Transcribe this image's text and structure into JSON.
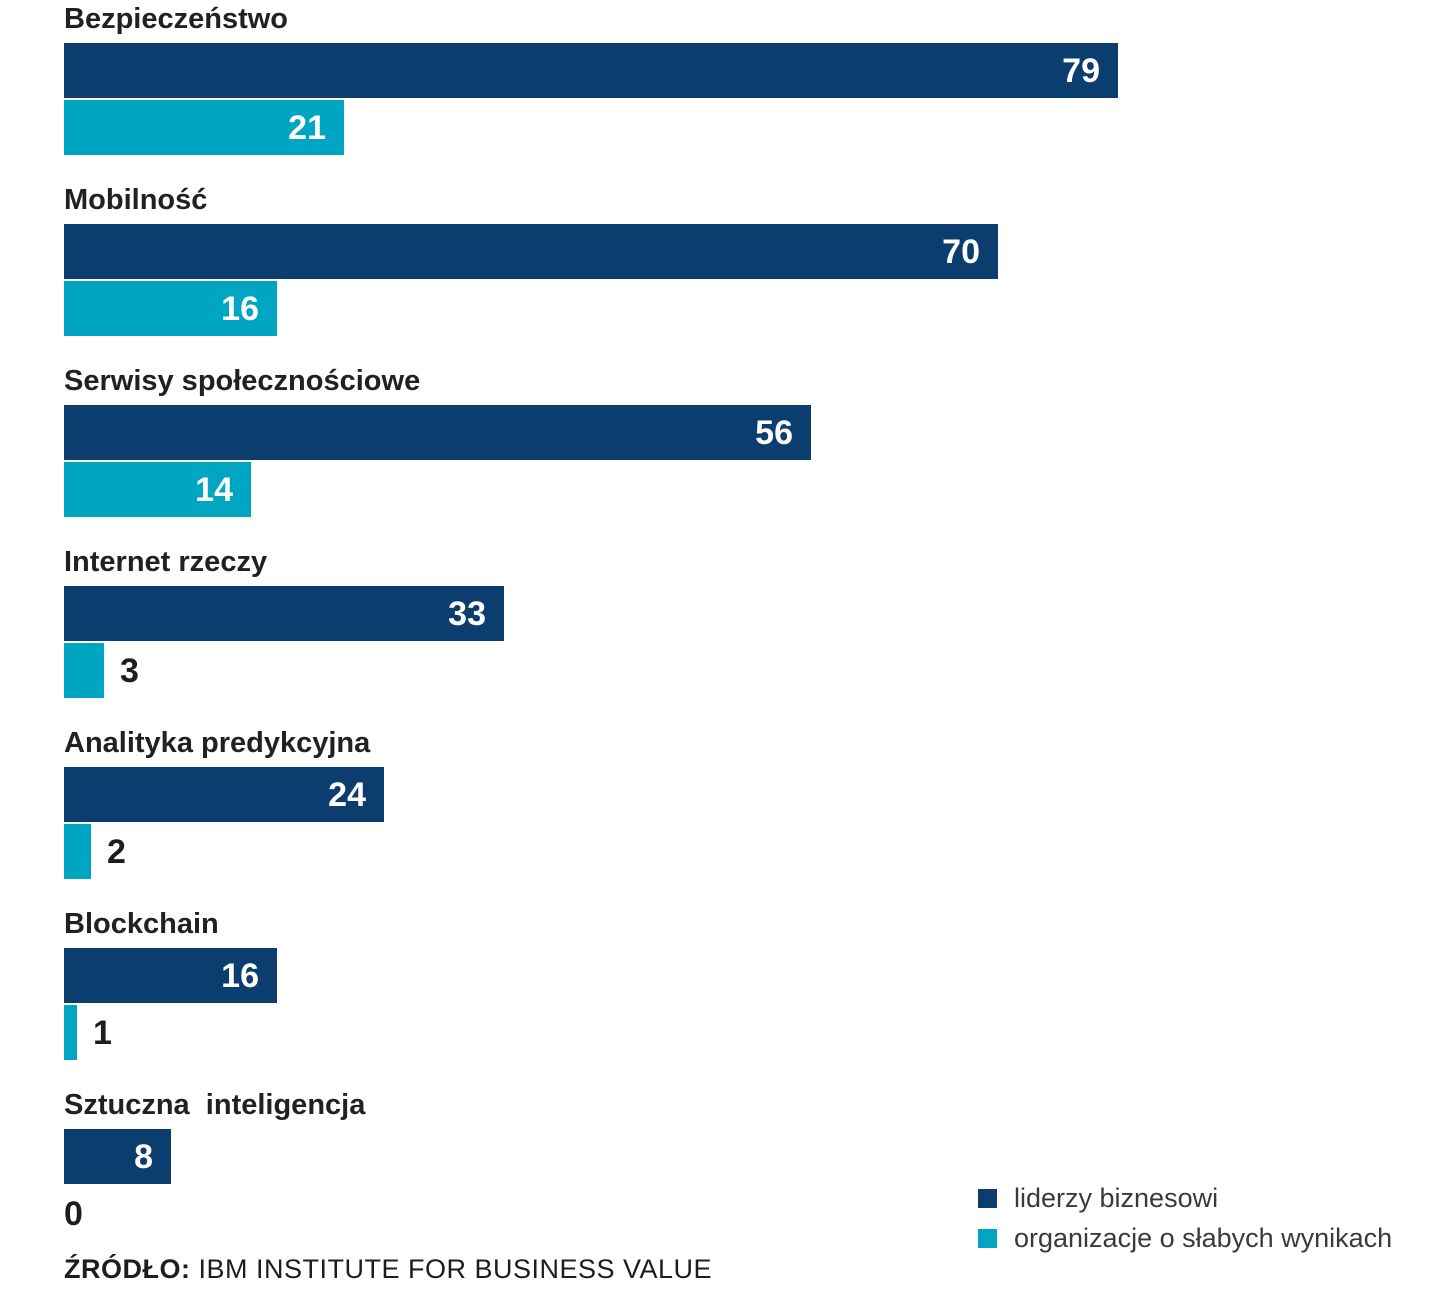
{
  "chart_data": {
    "type": "bar",
    "orientation": "horizontal",
    "title": "",
    "xlabel": "",
    "ylabel": "",
    "xlim": [
      0,
      100
    ],
    "grid": false,
    "axes_visible": false,
    "value_labels_shown": true,
    "legend_position": "bottom-right",
    "categories": [
      "Bezpieczeństwo",
      "Mobilność",
      "Serwisy społecznościowe",
      "Internet rzeczy",
      "Analityka predykcyjna",
      "Blockchain",
      "Sztuczna  inteligencja"
    ],
    "series": [
      {
        "name": "liderzy biznesowi",
        "color": "#0b3d6e",
        "values": [
          79,
          70,
          56,
          33,
          24,
          16,
          8
        ]
      },
      {
        "name": "organizacje o słabych wynikach",
        "color": "#00a5c1",
        "values": [
          21,
          16,
          14,
          3,
          2,
          1,
          0
        ]
      }
    ]
  },
  "colors": {
    "leaders_bar": "#0b3d6e",
    "laggards_bar": "#00a5c1",
    "value_inside_text": "#ffffff",
    "value_outside_text": "#1d1d1b",
    "category_text": "#232021"
  },
  "source": {
    "label": "ŹRÓDŁO:",
    "text": " IBM INSTITUTE FOR BUSINESS VALUE"
  }
}
